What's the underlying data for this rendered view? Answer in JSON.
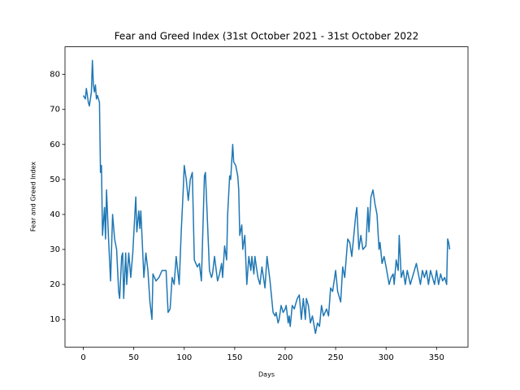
{
  "chart_data": {
    "type": "line",
    "title": "Fear and Greed Index (31st October 2021 - 31st October 2022",
    "xlabel": "Days",
    "ylabel": "Fear and Greed Index",
    "xlim": [
      -18.15,
      381.15
    ],
    "ylim": [
      2.1,
      87.9
    ],
    "xticks": [
      0,
      50,
      100,
      150,
      200,
      250,
      300,
      350
    ],
    "yticks": [
      10,
      20,
      30,
      40,
      50,
      60,
      70,
      80
    ],
    "x": [
      0,
      2,
      3,
      5,
      6,
      8,
      9,
      10,
      11,
      12,
      13,
      14,
      16,
      17,
      18,
      19,
      21,
      22,
      23,
      25,
      27,
      29,
      31,
      33,
      35,
      36,
      38,
      39,
      40,
      42,
      43,
      45,
      47,
      49,
      52,
      53,
      55,
      56,
      57,
      60,
      62,
      64,
      66,
      68,
      69,
      72,
      75,
      78,
      82,
      84,
      86,
      88,
      90,
      92,
      95,
      97,
      99,
      100,
      102,
      104,
      106,
      108,
      110,
      113,
      115,
      117,
      120,
      121,
      123,
      125,
      127,
      128,
      130,
      133,
      135,
      137,
      138,
      140,
      142,
      143,
      145,
      146,
      148,
      149,
      151,
      153,
      154,
      155,
      157,
      158,
      160,
      162,
      164,
      166,
      167,
      169,
      170,
      173,
      175,
      177,
      180,
      182,
      185,
      188,
      190,
      191,
      193,
      194,
      196,
      198,
      200,
      201,
      203,
      204,
      205,
      207,
      209,
      212,
      214,
      216,
      217,
      218,
      220,
      221,
      223,
      225,
      227,
      230,
      232,
      234,
      236,
      238,
      241,
      243,
      245,
      247,
      250,
      252,
      255,
      257,
      259,
      262,
      264,
      266,
      270,
      271,
      273,
      275,
      277,
      280,
      282,
      283,
      285,
      287,
      289,
      291,
      293,
      294,
      296,
      298,
      300,
      303,
      305,
      307,
      308,
      310,
      312,
      313,
      315,
      317,
      319,
      321,
      324,
      326,
      328,
      330,
      332,
      334,
      336,
      338,
      340,
      342,
      344,
      346,
      348,
      350,
      352,
      354,
      356,
      358,
      360,
      361,
      362,
      363
    ],
    "series": [
      {
        "name": "Fear and Greed Index",
        "color": "#1f77b4",
        "values": [
          74,
          73,
          76,
          72,
          71,
          75,
          84,
          77,
          75,
          77,
          73,
          74,
          72,
          52,
          54,
          34,
          42,
          33,
          47,
          33,
          21,
          40,
          33,
          30,
          18,
          16,
          28,
          29,
          16,
          29,
          20,
          29,
          22,
          29,
          45,
          35,
          41,
          36,
          41,
          22,
          29,
          24,
          15,
          10,
          23,
          21,
          22,
          24,
          24,
          12,
          13,
          22,
          20,
          28,
          20,
          35,
          47,
          54,
          50,
          44,
          50,
          52,
          27,
          25,
          26,
          21,
          51,
          52,
          38,
          24,
          22,
          23,
          28,
          21,
          23,
          26,
          22,
          31,
          27,
          40,
          51,
          50,
          60,
          55,
          54,
          51,
          47,
          34,
          37,
          30,
          34,
          20,
          28,
          24,
          28,
          23,
          28,
          22,
          20,
          25,
          19,
          28,
          21,
          12,
          11,
          12,
          9,
          10,
          14,
          12,
          13,
          14,
          9,
          11,
          8,
          14,
          13,
          16,
          17,
          10,
          13,
          16,
          10,
          16,
          14,
          9,
          11,
          6,
          9,
          8,
          14,
          11,
          13,
          11,
          19,
          18,
          24,
          18,
          15,
          25,
          22,
          33,
          32,
          28,
          40,
          42,
          30,
          34,
          30,
          31,
          42,
          35,
          45,
          47,
          43,
          40,
          30,
          32,
          26,
          28,
          25,
          20,
          22,
          23,
          20,
          27,
          24,
          34,
          22,
          24,
          20,
          24,
          20,
          22,
          24,
          26,
          23,
          20,
          24,
          22,
          24,
          20,
          24,
          22,
          20,
          24,
          20,
          23,
          21,
          22,
          20,
          33,
          32,
          30
        ]
      }
    ]
  }
}
